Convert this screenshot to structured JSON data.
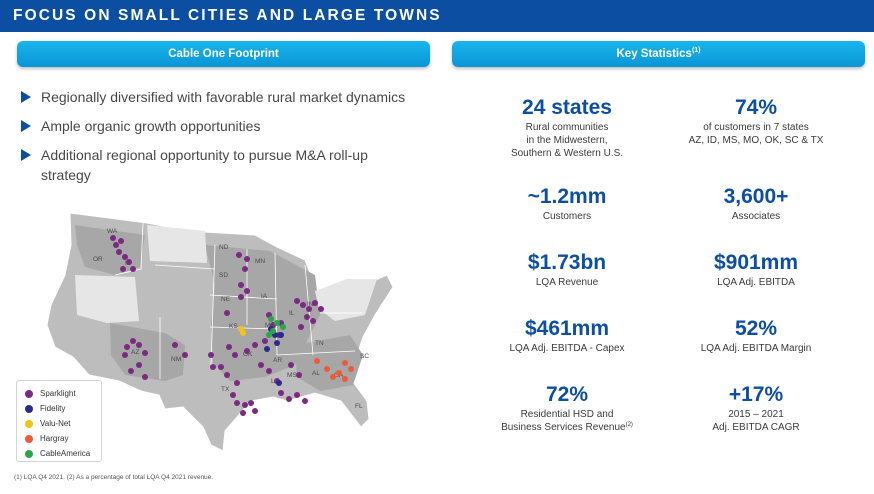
{
  "header": {
    "title": "FOCUS ON SMALL CITIES AND LARGE TOWNS"
  },
  "left_panel": {
    "heading": "Cable One Footprint",
    "bullets": [
      "Regionally diversified with favorable rural market dynamics",
      "Ample organic growth opportunities",
      "Additional regional opportunity to pursue M&A roll-up strategy"
    ],
    "map": {
      "state_labels": [
        "WA",
        "OR",
        "ID",
        "ND",
        "MN",
        "SD",
        "NE",
        "IA",
        "IN",
        "IL",
        "KS",
        "MO",
        "AZ",
        "NM",
        "OK",
        "AR",
        "TN",
        "MS",
        "TX",
        "LA",
        "AL",
        "GA",
        "SC",
        "FL"
      ],
      "legend": [
        {
          "label": "Sparklight",
          "color": "#7b2a82"
        },
        {
          "label": "Fidelity",
          "color": "#2b2a8a"
        },
        {
          "label": "Valu-Net",
          "color": "#f4c21a"
        },
        {
          "label": "Hargray",
          "color": "#ef5a3c"
        },
        {
          "label": "CableAmerica",
          "color": "#27a74a"
        }
      ]
    }
  },
  "right_panel": {
    "heading": "Key Statistics",
    "heading_note": "(1)",
    "stats": [
      {
        "value": "24 states",
        "desc": [
          "Rural communities",
          "in the Midwestern,",
          "Southern & Western U.S."
        ]
      },
      {
        "value": "74%",
        "desc": [
          "of customers in 7 states",
          "AZ, ID, MS, MO, OK, SC & TX"
        ]
      },
      {
        "value": "~1.2mm",
        "desc": [
          "Customers"
        ]
      },
      {
        "value": "3,600+",
        "desc": [
          "Associates"
        ]
      },
      {
        "value": "$1.73bn",
        "desc": [
          "LQA Revenue"
        ]
      },
      {
        "value": "$901mm",
        "desc": [
          "LQA Adj. EBITDA"
        ]
      },
      {
        "value": "$461mm",
        "desc": [
          "LQA Adj. EBITDA - Capex"
        ]
      },
      {
        "value": "52%",
        "desc": [
          "LQA Adj. EBITDA Margin"
        ]
      },
      {
        "value": "72%",
        "desc": [
          "Residential HSD and",
          "Business Services Revenue"
        ],
        "desc_note": "(2)"
      },
      {
        "value": "+17%",
        "desc": [
          "2015 – 2021",
          "Adj. EBITDA CAGR"
        ]
      }
    ]
  },
  "footnote": "(1) LQA Q4 2021. (2) As a percentage of total LQA Q4 2021 revenue."
}
